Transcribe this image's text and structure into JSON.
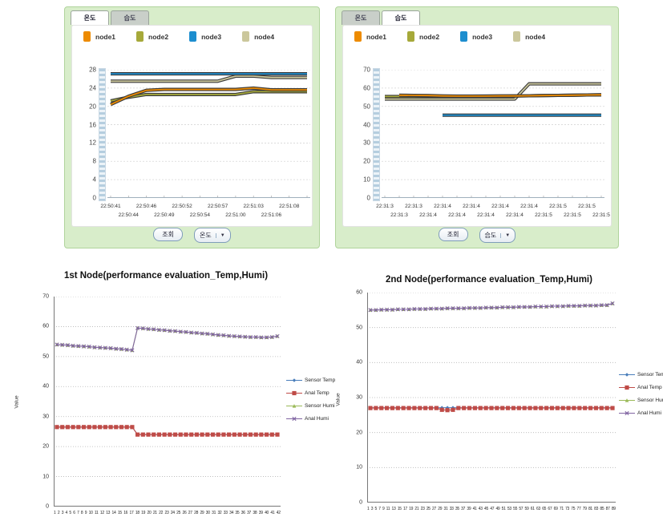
{
  "top_left_panel": {
    "tabs": [
      {
        "label": "온도"
      },
      {
        "label": "습도"
      }
    ],
    "active_tab": 0,
    "legend": [
      {
        "label": "node1",
        "color": "#ed8b00"
      },
      {
        "label": "node2",
        "color": "#a6a93a"
      },
      {
        "label": "node3",
        "color": "#1d8ecf"
      },
      {
        "label": "node4",
        "color": "#cbc79c"
      }
    ],
    "query_button": "조회",
    "dropdown_button": "온도"
  },
  "top_right_panel": {
    "tabs": [
      {
        "label": "온도"
      },
      {
        "label": "습도"
      }
    ],
    "active_tab": 1,
    "legend": [
      {
        "label": "node1",
        "color": "#ed8b00"
      },
      {
        "label": "node2",
        "color": "#a6a93a"
      },
      {
        "label": "node3",
        "color": "#1d8ecf"
      },
      {
        "label": "node4",
        "color": "#cbc79c"
      }
    ],
    "query_button": "조회",
    "dropdown_button": "습도"
  },
  "chart_data": {
    "temp_panel_chart": {
      "type": "line",
      "ylim": [
        0,
        28
      ],
      "yticks": [
        0,
        4,
        8,
        12,
        16,
        20,
        24,
        28
      ],
      "grid": true,
      "x_labels_row1": [
        "22:50:41",
        "22:50:46",
        "22:50:52",
        "22:50:57",
        "22:51:03",
        "22:51:08"
      ],
      "x_labels_row2": [
        "22:50:44",
        "22:50:49",
        "22:50:54",
        "22:51:00",
        "22:51:06"
      ],
      "series": [
        {
          "name": "node1",
          "color": "#ed8b00",
          "values": [
            20.4,
            22.2,
            23.5,
            23.7,
            23.7,
            23.7,
            23.7,
            23.7,
            24.0,
            23.6,
            23.6,
            23.6
          ]
        },
        {
          "name": "node2",
          "color": "#a6a93a",
          "values": [
            21.2,
            22.0,
            22.6,
            22.6,
            22.6,
            22.6,
            22.6,
            22.6,
            23.2,
            23.2,
            23.2,
            23.2
          ]
        },
        {
          "name": "node3",
          "color": "#1d8ecf",
          "values": [
            27.1,
            27.1,
            27.1,
            27.1,
            27.1,
            27.1,
            27.1,
            27.1,
            27.1,
            27.1,
            27.1,
            27.1
          ]
        },
        {
          "name": "node4",
          "color": "#cbc79c",
          "values": [
            25.5,
            25.5,
            25.5,
            25.5,
            25.5,
            25.5,
            25.5,
            26.6,
            26.6,
            26.3,
            26.3,
            26.3
          ]
        }
      ]
    },
    "humi_panel_chart": {
      "type": "line",
      "ylim": [
        0,
        70
      ],
      "yticks": [
        0,
        10,
        20,
        30,
        40,
        50,
        60,
        70
      ],
      "grid": true,
      "x_labels_row1": [
        "22:31:3",
        "22:31:3",
        "22:31:4",
        "22:31:4",
        "22:31:4",
        "22:31:4",
        "22:31:5",
        "22:31:5"
      ],
      "x_labels_row2": [
        "22:31:3",
        "22:31:4",
        "22:31:4",
        "22:31:4",
        "22:31:4",
        "22:31:5",
        "22:31:5",
        "22:31:5"
      ],
      "series": [
        {
          "name": "node1",
          "color": "#ed8b00",
          "values": [
            null,
            56.1,
            56.0,
            55.9,
            55.7,
            55.6,
            55.6,
            55.6,
            55.7,
            55.7,
            55.8,
            55.9,
            56.0,
            56.1,
            56.2,
            56.3
          ]
        },
        {
          "name": "node2",
          "color": "#a6a93a",
          "values": [
            55.4,
            55.4,
            55.4,
            55.5,
            55.5,
            55.5,
            55.5,
            55.6,
            55.6,
            55.7,
            55.8,
            55.9,
            56.0,
            56.1,
            56.2,
            56.3
          ]
        },
        {
          "name": "node3",
          "color": "#1d8ecf",
          "values": [
            null,
            null,
            null,
            null,
            45.2,
            45.2,
            45.2,
            45.2,
            45.2,
            45.2,
            45.2,
            45.2,
            45.2,
            45.2,
            45.2,
            45.2
          ]
        },
        {
          "name": "node4",
          "color": "#cbc79c",
          "values": [
            54,
            54,
            54,
            54,
            54,
            54,
            54,
            54,
            54,
            54,
            62.3,
            62.3,
            62.3,
            62.3,
            62.3,
            62.3
          ]
        }
      ]
    },
    "node1_chart": {
      "type": "line",
      "title": "1st Node(performance evaluation_Temp,Humi)",
      "ylabel": "Value",
      "ylim": [
        0,
        70
      ],
      "yticks": [
        0,
        10,
        20,
        30,
        40,
        50,
        60,
        70
      ],
      "grid": true,
      "legend_position": "right",
      "x_labels": [
        "1",
        "2",
        "3",
        "4",
        "5",
        "6",
        "7",
        "8",
        "9",
        "10",
        "11",
        "12",
        "13",
        "14",
        "15",
        "16",
        "17",
        "18",
        "19",
        "20",
        "21",
        "22",
        "23",
        "24",
        "25",
        "26",
        "27",
        "28",
        "29",
        "30",
        "31",
        "32",
        "33",
        "34",
        "35",
        "36",
        "37",
        "38",
        "39",
        "40",
        "41",
        "42"
      ],
      "series": [
        {
          "name": "Sensor Temp",
          "color": "#4a7ebb",
          "marker": "diamond",
          "values": [
            26.5,
            26.5,
            26.5,
            26.5,
            26.5,
            26.5,
            26.5,
            26.5,
            26.5,
            26.5,
            26.5,
            26.5,
            26.5,
            26.5,
            26.5,
            24,
            24,
            24,
            24,
            24,
            24,
            24,
            24,
            24,
            24,
            24,
            24,
            24,
            24,
            24,
            24,
            24,
            24,
            24,
            24,
            24,
            24,
            24,
            24,
            24,
            24,
            24
          ]
        },
        {
          "name": "Anal Temp",
          "color": "#bf4b47",
          "marker": "square",
          "values": [
            26.5,
            26.5,
            26.5,
            26.5,
            26.5,
            26.5,
            26.5,
            26.5,
            26.5,
            26.5,
            26.5,
            26.5,
            26.5,
            26.5,
            26.5,
            24,
            24,
            24,
            24,
            24,
            24,
            24,
            24,
            24,
            24,
            24,
            24,
            24,
            24,
            24,
            24,
            24,
            24,
            24,
            24,
            24,
            24,
            24,
            24,
            24,
            24,
            24
          ]
        },
        {
          "name": "Sensor Humi",
          "color": "#9bba59",
          "marker": "triangle",
          "values": [
            54.0,
            53.9,
            53.8,
            53.6,
            53.5,
            53.4,
            53.3,
            53.1,
            53.0,
            52.9,
            52.8,
            52.6,
            52.5,
            52.3,
            52.1,
            59.5,
            59.4,
            59.2,
            59.1,
            58.9,
            58.8,
            58.6,
            58.5,
            58.3,
            58.2,
            58.0,
            57.9,
            57.7,
            57.6,
            57.4,
            57.2,
            57.1,
            56.9,
            56.8,
            56.7,
            56.6,
            56.5,
            56.5,
            56.4,
            56.4,
            56.5,
            56.8
          ]
        },
        {
          "name": "Anal Humi",
          "color": "#8064a2",
          "marker": "x",
          "values": [
            54.0,
            53.9,
            53.8,
            53.6,
            53.5,
            53.4,
            53.3,
            53.1,
            53.0,
            52.9,
            52.8,
            52.6,
            52.5,
            52.3,
            52.1,
            59.5,
            59.4,
            59.2,
            59.1,
            58.9,
            58.8,
            58.6,
            58.5,
            58.3,
            58.2,
            58.0,
            57.9,
            57.7,
            57.6,
            57.4,
            57.2,
            57.1,
            56.9,
            56.8,
            56.7,
            56.6,
            56.5,
            56.5,
            56.4,
            56.4,
            56.5,
            56.8
          ]
        }
      ]
    },
    "node2_chart": {
      "type": "line",
      "title": "2nd Node(performance evaluation_Temp,Humi)",
      "ylabel": "Value",
      "ylim": [
        0,
        60
      ],
      "yticks": [
        0,
        10,
        20,
        30,
        40,
        50,
        60
      ],
      "grid": true,
      "legend_position": "right",
      "x_labels": [
        "1",
        "3",
        "5",
        "7",
        "9",
        "11",
        "13",
        "15",
        "17",
        "19",
        "21",
        "23",
        "25",
        "27",
        "29",
        "31",
        "33",
        "35",
        "37",
        "39",
        "41",
        "43",
        "45",
        "47",
        "49",
        "51",
        "53",
        "55",
        "57",
        "59",
        "61",
        "63",
        "65",
        "67",
        "69",
        "71",
        "73",
        "75",
        "77",
        "79",
        "81",
        "83",
        "85",
        "87",
        "89"
      ],
      "series": [
        {
          "name": "Sensor Temp",
          "color": "#4a7ebb",
          "marker": "diamond",
          "values": [
            27.1,
            27.1,
            27.1,
            27.1,
            27.1,
            27.1,
            27.1,
            27.1,
            27.1,
            27.1,
            27.1,
            27.1,
            27.1,
            27.1,
            27.1,
            27.1,
            27.1,
            27.1,
            27.1,
            27.1,
            27.1,
            27.1,
            27.1,
            27.1,
            27.1,
            27.1,
            27.1,
            27.1,
            27.1,
            27.1,
            27.1,
            27.1,
            27.1,
            27.1,
            27.1,
            27.1,
            27.1,
            27.1,
            27.1,
            27.1,
            27.1,
            27.1,
            27.1,
            27.1,
            27.1
          ]
        },
        {
          "name": "Anal Temp",
          "color": "#bf4b47",
          "marker": "square",
          "values": [
            27,
            27,
            27,
            27,
            27,
            27,
            27,
            27,
            27,
            27,
            27,
            27,
            27,
            26.5,
            26.4,
            26.5,
            27,
            27,
            27,
            27,
            27,
            27,
            27,
            27,
            27,
            27,
            27,
            27,
            27,
            27,
            27,
            27,
            27,
            27,
            27,
            27,
            27,
            27,
            27,
            27,
            27,
            27,
            27,
            27,
            27
          ]
        },
        {
          "name": "Sensor Humi",
          "color": "#9bba59",
          "marker": "triangle",
          "values": [
            55.0,
            55.0,
            55.1,
            55.1,
            55.1,
            55.2,
            55.2,
            55.2,
            55.3,
            55.3,
            55.3,
            55.4,
            55.4,
            55.4,
            55.5,
            55.5,
            55.5,
            55.5,
            55.6,
            55.6,
            55.6,
            55.7,
            55.7,
            55.7,
            55.8,
            55.8,
            55.8,
            55.9,
            55.9,
            55.9,
            56.0,
            56.0,
            56.0,
            56.1,
            56.1,
            56.1,
            56.2,
            56.2,
            56.2,
            56.3,
            56.3,
            56.3,
            56.4,
            56.4,
            56.9
          ]
        },
        {
          "name": "Anal Humi",
          "color": "#8064a2",
          "marker": "x",
          "values": [
            55.0,
            55.0,
            55.1,
            55.1,
            55.1,
            55.2,
            55.2,
            55.2,
            55.3,
            55.3,
            55.3,
            55.4,
            55.4,
            55.4,
            55.5,
            55.5,
            55.5,
            55.5,
            55.6,
            55.6,
            55.6,
            55.7,
            55.7,
            55.7,
            55.8,
            55.8,
            55.8,
            55.9,
            55.9,
            55.9,
            56.0,
            56.0,
            56.0,
            56.1,
            56.1,
            56.1,
            56.2,
            56.2,
            56.2,
            56.3,
            56.3,
            56.3,
            56.4,
            56.4,
            56.9
          ]
        }
      ]
    }
  }
}
